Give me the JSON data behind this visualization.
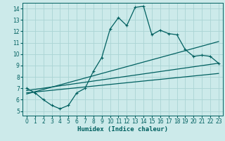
{
  "xlabel": "Humidex (Indice chaleur)",
  "bg_color": "#cceaea",
  "grid_color": "#aad4d4",
  "line_color": "#006060",
  "xlim": [
    -0.5,
    23.5
  ],
  "ylim": [
    4.6,
    14.5
  ],
  "xticks": [
    0,
    1,
    2,
    3,
    4,
    5,
    6,
    7,
    8,
    9,
    10,
    11,
    12,
    13,
    14,
    15,
    16,
    17,
    18,
    19,
    20,
    21,
    22,
    23
  ],
  "yticks": [
    5,
    6,
    7,
    8,
    9,
    10,
    11,
    12,
    13,
    14
  ],
  "main_series_x": [
    0,
    1,
    2,
    3,
    4,
    5,
    6,
    7,
    8,
    9,
    10,
    11,
    12,
    13,
    14,
    15,
    16,
    17,
    18,
    19,
    20,
    21,
    22,
    23
  ],
  "main_series_y": [
    7.0,
    6.6,
    6.0,
    5.5,
    5.2,
    5.5,
    6.6,
    7.0,
    8.5,
    9.7,
    12.2,
    13.2,
    12.5,
    14.1,
    14.2,
    11.7,
    12.1,
    11.8,
    11.7,
    10.4,
    9.8,
    9.9,
    9.8,
    9.2
  ],
  "trend_lines": [
    {
      "x": [
        0,
        23
      ],
      "y": [
        6.8,
        9.2
      ]
    },
    {
      "x": [
        0,
        23
      ],
      "y": [
        6.6,
        8.3
      ]
    },
    {
      "x": [
        0,
        23
      ],
      "y": [
        6.5,
        11.1
      ]
    }
  ],
  "xlabel_fontsize": 6.5,
  "tick_fontsize": 5.5,
  "line_width": 0.9,
  "marker_size": 3.5
}
